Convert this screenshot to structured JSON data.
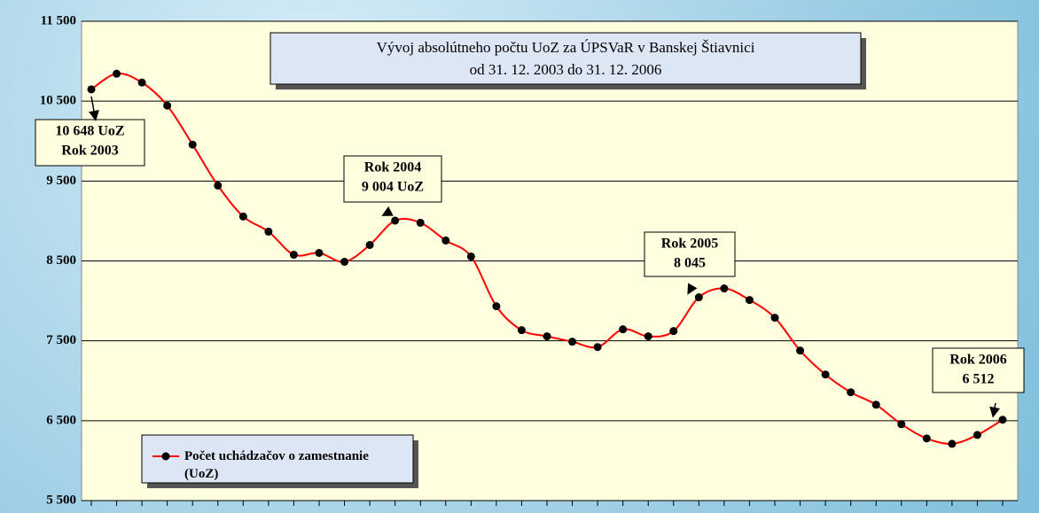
{
  "chart_data": {
    "type": "line",
    "title": [
      "Vývoj absolútneho počtu UoZ za ÚPSVaR v Banskej Štiavnici",
      "od  31. 12. 2003  do  31. 12.  2006"
    ],
    "categories": [
      null,
      null,
      null,
      null,
      null,
      null,
      null,
      null,
      null,
      null,
      null,
      null,
      null,
      null,
      null,
      null,
      null,
      null,
      null,
      null,
      null,
      null,
      null,
      null,
      null,
      null,
      null,
      null,
      null,
      null,
      null,
      null,
      null,
      null,
      null,
      null,
      null
    ],
    "series": [
      {
        "name": "Počet uchádzačov o zamestnanie (UoZ)",
        "color": "#ff0000",
        "values": [
          10648,
          10844,
          10733,
          10444,
          9956,
          9444,
          9056,
          8867,
          8578,
          8600,
          8489,
          8700,
          9004,
          8978,
          8756,
          8556,
          7933,
          7633,
          7556,
          7489,
          7422,
          7644,
          7556,
          7622,
          8045,
          8156,
          8011,
          7789,
          7378,
          7078,
          6856,
          6700,
          6456,
          6278,
          6211,
          6322,
          6512
        ]
      }
    ],
    "ylim": [
      5500,
      11500
    ],
    "yticks": [
      {
        "value": 5500,
        "label": "5 500"
      },
      {
        "value": 6500,
        "label": "6 500"
      },
      {
        "value": 7500,
        "label": "7 500"
      },
      {
        "value": 8500,
        "label": "8 500"
      },
      {
        "value": 9500,
        "label": "9 500"
      },
      {
        "value": 10500,
        "label": "10 500"
      },
      {
        "value": 11500,
        "label": "11 500"
      }
    ],
    "grid": true,
    "legend": "lower-left",
    "annotations": [
      {
        "lines": [
          "10 648 UoZ",
          "Rok 2003"
        ]
      },
      {
        "lines": [
          "Rok 2004",
          "9 004 UoZ"
        ]
      },
      {
        "lines": [
          "Rok 2005",
          "8 045"
        ]
      },
      {
        "lines": [
          "Rok 2006",
          "6 512"
        ]
      }
    ]
  }
}
